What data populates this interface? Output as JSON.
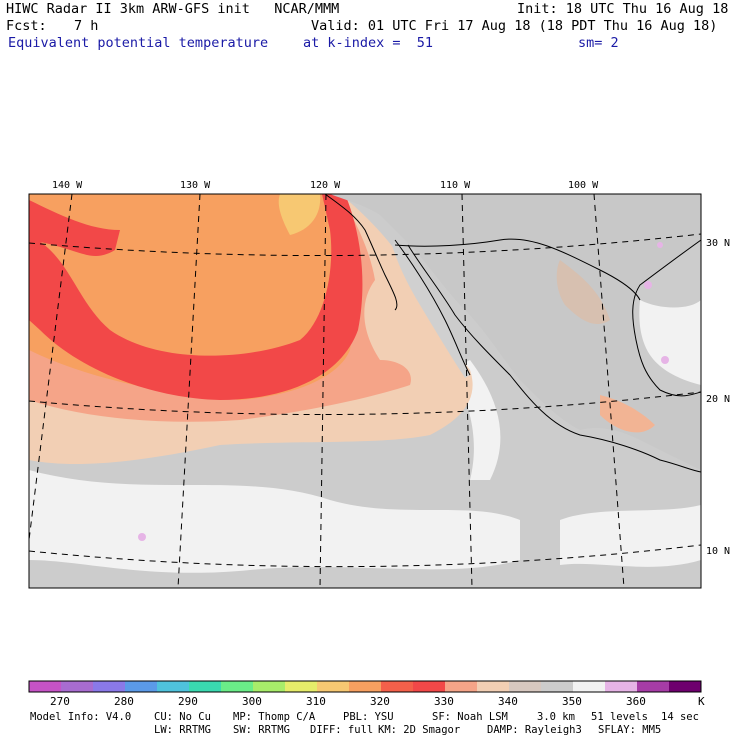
{
  "header": {
    "line1_left": "HIWC Radar II 3km ARW-GFS init   NCAR/MMM",
    "line1_right": "Init: 18 UTC Thu 16 Aug 18",
    "fcst_label": "Fcst:",
    "fcst_value": "7 h",
    "valid": "Valid: 01 UTC Fri 17 Aug 18 (18 PDT Thu 16 Aug 18)",
    "field_name": "Equivalent potential temperature",
    "level": "at k-index =  51",
    "smoothing": "sm= 2"
  },
  "map": {
    "lon_labels": [
      "140 W",
      "130 W",
      "120 W",
      "110 W",
      "100 W"
    ],
    "lat_labels": [
      "30 N",
      "20 N",
      "10 N"
    ]
  },
  "colorbar": {
    "colors": [
      "#c653c6",
      "#a86cd0",
      "#8a79e8",
      "#5b9ae8",
      "#4fc2dc",
      "#3ad9b0",
      "#6aec88",
      "#a8ec6a",
      "#e6ec6a",
      "#f7c872",
      "#f7a060",
      "#f4604a",
      "#f24848",
      "#f5a488",
      "#f2cfb4",
      "#d7c8c0",
      "#cccccc",
      "#f2f2f2",
      "#e6b4e6",
      "#a63ca6",
      "#6e006e"
    ],
    "labels": [
      "270",
      "280",
      "290",
      "300",
      "310",
      "320",
      "330",
      "340",
      "350",
      "360"
    ],
    "unit": "K"
  },
  "footer": {
    "model_info": "Model Info: V4.0",
    "cu": "CU: No Cu",
    "mp": "MP: Thomp C/A",
    "pbl": "PBL: YSU",
    "sf": "SF: Noah LSM",
    "res": "3.0 km",
    "levels": "51 levels",
    "dt": "14 sec",
    "lw": "LW: RRTMG",
    "sw": "SW: RRTMG",
    "diff": "DIFF: full",
    "km": "KM: 2D Smagor",
    "damp": "DAMP: Rayleigh3",
    "sflay": "SFLAY: MM5"
  }
}
